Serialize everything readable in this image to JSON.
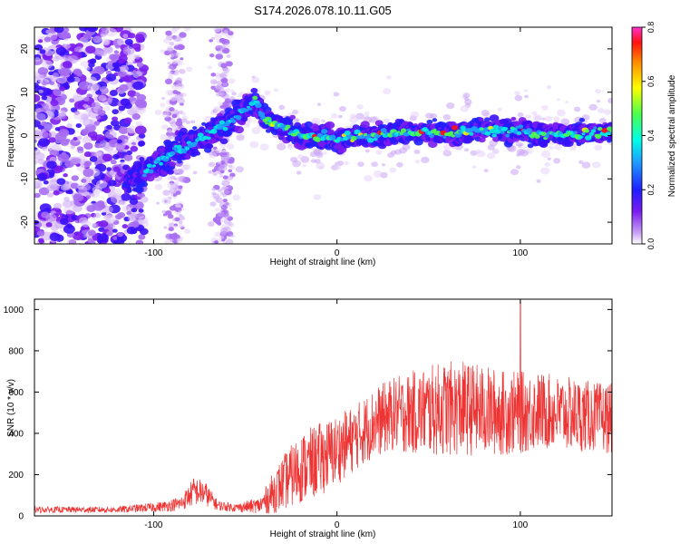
{
  "title": "S174.2026.078.10.11.G05",
  "chart_data": [
    {
      "type": "heatmap",
      "panel": "top",
      "xlabel": "Height of straight line (km)",
      "ylabel": "Frequency (Hz)",
      "xlim": [
        -165,
        150
      ],
      "ylim": [
        -25,
        25
      ],
      "xticks": [
        -100,
        0,
        100
      ],
      "yticks": [
        -20,
        -10,
        0,
        10,
        20
      ],
      "colorbar": {
        "label": "Normalized spectral amplitude",
        "range": [
          0,
          0.8
        ],
        "ticks": [
          "0.0",
          "0.2",
          "0.4",
          "0.6",
          "0.8"
        ]
      },
      "ridge": {
        "description_points_x": [
          -110,
          -100,
          -90,
          -80,
          -70,
          -60,
          -50,
          -45,
          -40,
          -30,
          -20,
          -10,
          0,
          10,
          20,
          30,
          40,
          50,
          60,
          70,
          80,
          90,
          100,
          110,
          120,
          130,
          140,
          150
        ],
        "description_points_y": [
          -10,
          -7,
          -4,
          -2,
          0,
          3,
          6,
          8,
          4,
          2,
          0,
          0,
          -1,
          0,
          0,
          0.5,
          1,
          1,
          0.5,
          1,
          1.5,
          1,
          1,
          0.5,
          0,
          0.5,
          0.5,
          1
        ]
      }
    },
    {
      "type": "line",
      "panel": "bottom",
      "xlabel": "Height of straight line (km)",
      "ylabel": "SNR (10 * v/v)",
      "xlim": [
        -165,
        150
      ],
      "ylim": [
        0,
        1050
      ],
      "xticks": [
        -100,
        0,
        100
      ],
      "yticks": [
        0,
        200,
        400,
        600,
        800,
        1000
      ],
      "color": "#ee3333",
      "envelope": {
        "x": [
          -165,
          -120,
          -95,
          -85,
          -78,
          -72,
          -65,
          -55,
          -42,
          -35,
          -28,
          -20,
          -10,
          0,
          10,
          20,
          30,
          40,
          50,
          60,
          70,
          80,
          90,
          100,
          110,
          120,
          130,
          140,
          150
        ],
        "mean": [
          30,
          30,
          45,
          60,
          120,
          110,
          50,
          40,
          50,
          110,
          170,
          230,
          270,
          320,
          380,
          450,
          490,
          500,
          510,
          520,
          520,
          510,
          500,
          500,
          510,
          500,
          490,
          480,
          470
        ],
        "spread": [
          15,
          15,
          25,
          35,
          70,
          60,
          25,
          20,
          40,
          100,
          140,
          170,
          180,
          170,
          160,
          170,
          180,
          200,
          220,
          230,
          230,
          220,
          210,
          200,
          190,
          180,
          180,
          170,
          170
        ]
      },
      "peak": {
        "x": 100,
        "y": 1040
      }
    }
  ]
}
